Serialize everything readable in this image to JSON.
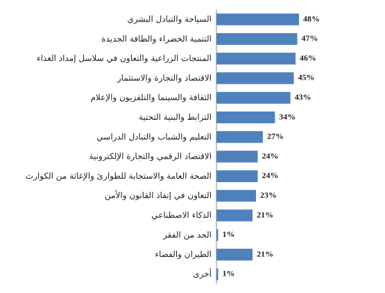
{
  "chart_data": {
    "type": "bar",
    "orientation": "horizontal",
    "color": "#4f81bd",
    "categories": [
      "السياحة والتبادل البشري",
      "التنمية الخضراء والطاقة الجديدة",
      "المنتجات الزراعية والتعاون في سلاسل إمداد الغذاء",
      "الاقتصاد والتجارة والاستثمار",
      "الثقافة والسينما والتلفزيون والإعلام",
      "الترابط والبنية التحتية",
      "التعليم والشباب والتبادل الدراسي",
      "الاقتصاد الرقمي والتجارة الإلكترونية",
      "الصحة العامة والاستجابة للطوارئ والإغاثة من الكوارث",
      "التعاون في إنفاذ القانون والأمن",
      "الذكاء الاصطناعي",
      "الحد من الفقر",
      "الطيران والفضاء",
      "أخرى"
    ],
    "values": [
      48,
      47,
      46,
      45,
      43,
      34,
      27,
      24,
      24,
      23,
      21,
      1,
      21,
      1
    ],
    "value_labels": [
      "48%",
      "47%",
      "46%",
      "45%",
      "43%",
      "34%",
      "27%",
      "24%",
      "24%",
      "23%",
      "21%",
      "1%",
      "21%",
      "1%"
    ]
  }
}
